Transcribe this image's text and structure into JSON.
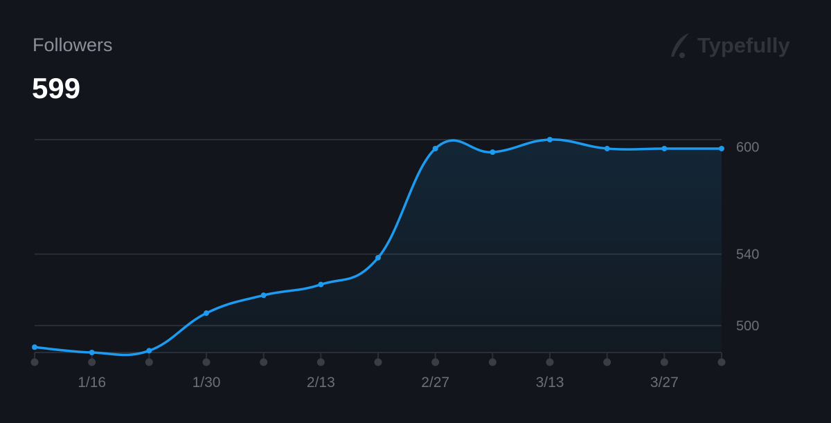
{
  "header": {
    "title": "Followers",
    "value": "599"
  },
  "brand": {
    "name": "Typefully"
  },
  "colors": {
    "line": "#1d9bf0",
    "grid": "#2a2e36",
    "tick_dot": "#3a3d45",
    "label": "#6b6f78"
  },
  "chart_data": {
    "type": "area",
    "title": "Followers",
    "x": [
      "1/9",
      "1/16",
      "1/23",
      "1/30",
      "2/6",
      "2/13",
      "2/20",
      "2/27",
      "3/6",
      "3/13",
      "3/20",
      "3/27",
      "4/3"
    ],
    "values": [
      488,
      485,
      486,
      507,
      517,
      523,
      538,
      599,
      597,
      604,
      599,
      599,
      599
    ],
    "x_tick_labels": [
      "1/16",
      "1/30",
      "2/13",
      "2/27",
      "3/13",
      "3/27"
    ],
    "y_ticks": [
      500,
      540,
      600
    ],
    "y_tick_labels": [
      "500",
      "540",
      "600"
    ],
    "ylim": [
      485,
      604
    ],
    "ylabel": "",
    "xlabel": "",
    "grid": true,
    "legend": "none"
  }
}
